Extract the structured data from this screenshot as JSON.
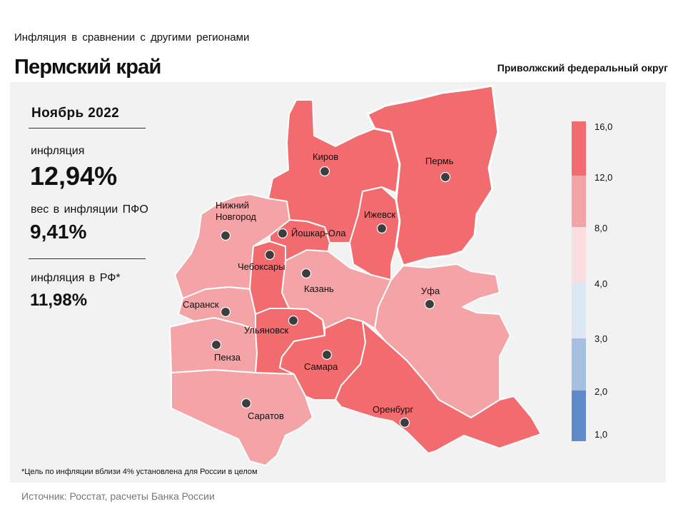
{
  "header": {
    "supertitle": "Инфляция в сравнении с другими регионами",
    "region": "Пермский край",
    "district": "Приволжский федеральный округ"
  },
  "stats": {
    "period": "Ноябрь 2022",
    "inflation_label": "инфляция",
    "inflation_value": "12,94%",
    "weight_label": "вес в инфляции ПФО",
    "weight_value": "9,41%",
    "rf_label": "инфляция в РФ*",
    "rf_value": "11,98%"
  },
  "footnote": "*Цель по инфляции вблизи 4% установлена для России в целом",
  "source": "Источник: Росстат, расчеты Банка России",
  "cities": {
    "kirov": "Киров",
    "perm": "Пермь",
    "nizhny_1": "Нижний",
    "nizhny_2": "Новгород",
    "izhevsk": "Ижевск",
    "yoshkar_ola": "Йошкар-Ола",
    "cheboksary": "Чебоксары",
    "kazan": "Казань",
    "ufa": "Уфа",
    "saransk": "Саранск",
    "ulyanovsk": "Ульяновск",
    "penza": "Пенза",
    "samara": "Самара",
    "orenburg": "Оренбург",
    "saratov": "Саратов"
  },
  "legend": {
    "ticks": [
      "16,0",
      "12,0",
      "8,0",
      "4,0",
      "3,0",
      "2,0",
      "1,0"
    ],
    "colors": {
      "band_12_16": "#f26b6e",
      "band_8_12": "#f4a3a6",
      "band_4_8": "#f9dde0",
      "band_3_4": "#dde6f3",
      "band_2_3": "#a7bfe0",
      "band_1_2": "#5f8cc8"
    }
  },
  "map_colors": {
    "high": "#f26b6e",
    "mid": "#f4a3a6",
    "border": "#ffffff",
    "city_dot": "#3d3d3d"
  }
}
